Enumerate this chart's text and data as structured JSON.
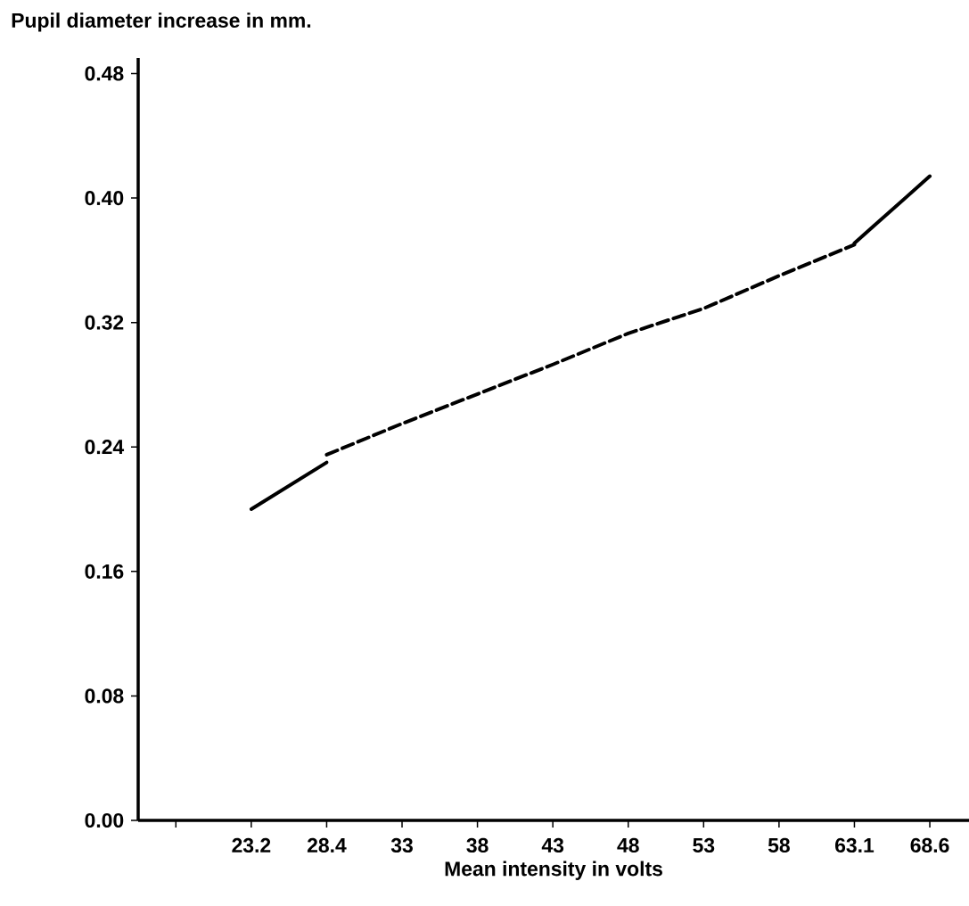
{
  "chart_data": {
    "type": "line",
    "xlabel": "Mean intensity in volts",
    "ylabel": "Pupil diameter increase in mm.",
    "categories": [
      null,
      "23.2",
      "28.4",
      "33",
      "38",
      "43",
      "48",
      "53",
      "58",
      "63.1",
      "68.6"
    ],
    "series": [
      {
        "color": "#000000",
        "line_style": "solid",
        "values": [
          null,
          0.2,
          0.23,
          null,
          null,
          null,
          null,
          null,
          null,
          null,
          null
        ]
      },
      {
        "color": "#000000",
        "line_style": "dashed",
        "values": [
          null,
          null,
          0.235,
          0.255,
          0.274,
          0.293,
          0.313,
          0.329,
          0.35,
          0.37,
          null
        ]
      },
      {
        "color": "#000000",
        "line_style": "solid",
        "values": [
          null,
          null,
          null,
          null,
          null,
          null,
          null,
          null,
          null,
          0.371,
          0.414
        ]
      }
    ],
    "ylim": [
      0,
      0.49
    ],
    "yticks": [
      {
        "value": 0,
        "label": "0.00"
      },
      {
        "value": 0.08,
        "label": "0.08"
      },
      {
        "value": 0.16,
        "label": "0.16"
      },
      {
        "value": 0.24,
        "label": "0.24"
      },
      {
        "value": 0.32,
        "label": "0.32"
      },
      {
        "value": 0.4,
        "label": "0.40"
      },
      {
        "value": 0.48,
        "label": "0.48"
      }
    ],
    "grid": false,
    "marker": "none"
  }
}
